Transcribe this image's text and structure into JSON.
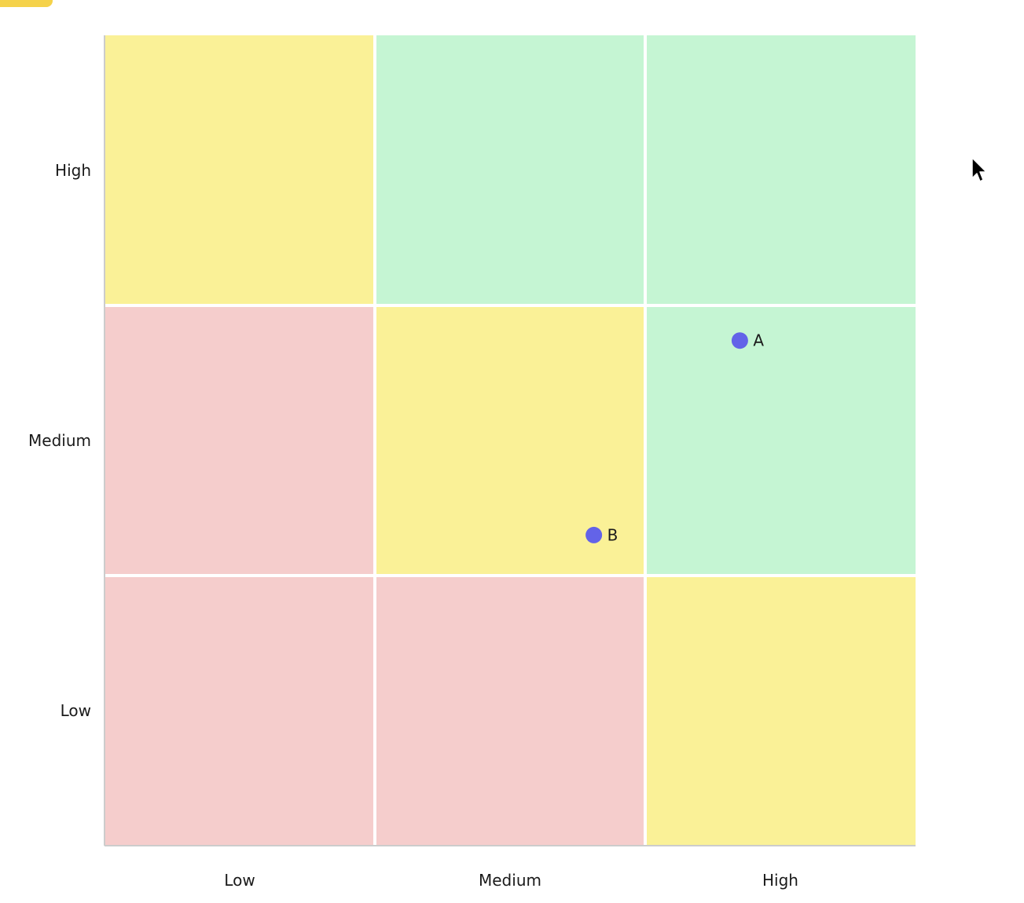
{
  "colors": {
    "accent_tab": "#f5d24a",
    "low_zone": "#f5cdcc",
    "mid_zone": "#faf197",
    "high_zone": "#c5f5d3",
    "point": "#6363e8",
    "axis_line": "#cccccc",
    "grid_gap": "#ffffff"
  },
  "chart_data": {
    "type": "scatter",
    "title": "",
    "xlabel": "",
    "ylabel": "",
    "x_categories": [
      "Low",
      "Medium",
      "High"
    ],
    "y_categories": [
      "Low",
      "Medium",
      "High"
    ],
    "xlim": [
      0,
      3
    ],
    "ylim": [
      0,
      3
    ],
    "grid": "3x3 colored cells",
    "cell_zones": [
      [
        "low_zone",
        "low_zone",
        "mid_zone"
      ],
      [
        "low_zone",
        "mid_zone",
        "high_zone"
      ],
      [
        "mid_zone",
        "high_zone",
        "high_zone"
      ]
    ],
    "points": [
      {
        "label": "A",
        "x": 2.35,
        "y": 1.87
      },
      {
        "label": "B",
        "x": 1.81,
        "y": 1.15
      }
    ]
  }
}
